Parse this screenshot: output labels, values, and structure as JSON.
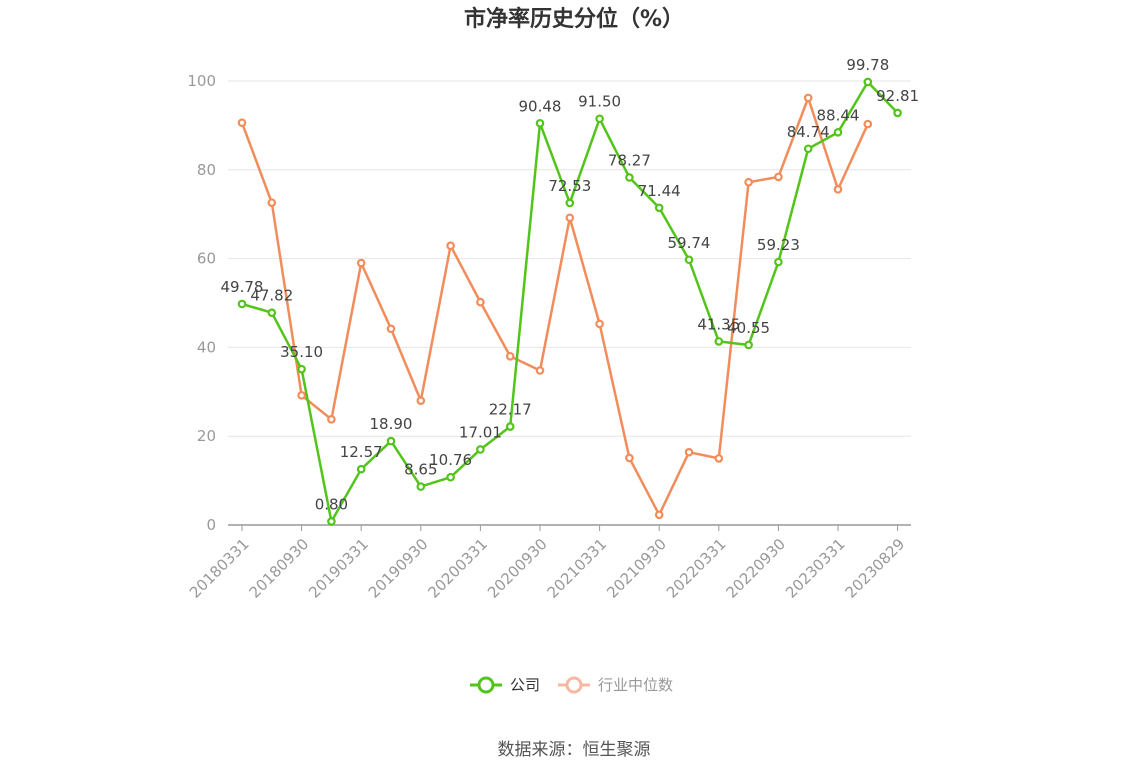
{
  "chart_data": {
    "type": "line",
    "title": "市净率历史分位（%）",
    "ylim": [
      0,
      100
    ],
    "yticks": [
      0,
      20,
      40,
      60,
      80,
      100
    ],
    "x": [
      "20180331",
      "20180630",
      "20180930",
      "20181231",
      "20190331",
      "20190630",
      "20190930",
      "20191231",
      "20200331",
      "20200630",
      "20200930",
      "20201231",
      "20210331",
      "20210630",
      "20210930",
      "20211231",
      "20220331",
      "20220630",
      "20220930",
      "20221231",
      "20230331",
      "20230630",
      "20230829"
    ],
    "xtick_labels": [
      "20180331",
      "20180930",
      "20190331",
      "20190930",
      "20200331",
      "20200930",
      "20210331",
      "20210930",
      "20220331",
      "20220930",
      "20230331",
      "20230829"
    ],
    "grid": "horizontal",
    "legend_position": "bottom",
    "series": [
      {
        "name": "公司",
        "color": "#52c41a",
        "values": [
          49.78,
          47.82,
          35.1,
          0.8,
          12.57,
          18.9,
          8.65,
          10.76,
          17.01,
          22.17,
          90.48,
          72.53,
          91.5,
          78.27,
          71.44,
          59.74,
          41.35,
          40.55,
          59.23,
          84.74,
          88.44,
          99.78,
          92.81
        ],
        "labels": [
          "49.78",
          "47.82",
          "35.10",
          "0.80",
          "12.57",
          "18.90",
          "8.65",
          "10.76",
          "17.01",
          "22.17",
          "90.48",
          "72.53",
          "91.50",
          "78.27",
          "71.44",
          "59.74",
          "41.35",
          "40.55",
          "59.23",
          "84.74",
          "88.44",
          "99.78",
          "92.81"
        ]
      },
      {
        "name": "行业中位数",
        "color": "#f28c5b",
        "values": [
          90.6,
          72.6,
          29.2,
          23.8,
          59.0,
          44.2,
          28.0,
          62.9,
          50.2,
          38.0,
          34.8,
          69.2,
          45.3,
          15.1,
          2.3,
          16.4,
          15.0,
          77.2,
          78.4,
          96.2,
          75.6,
          90.3,
          null
        ]
      }
    ]
  },
  "legend": {
    "company_label": "公司",
    "industry_label": "行业中位数",
    "company_color": "#52c41a",
    "industry_color": "#f6b8a0",
    "industry_text_color": "#999999"
  },
  "footer": {
    "source": "数据来源：恒生聚源"
  }
}
